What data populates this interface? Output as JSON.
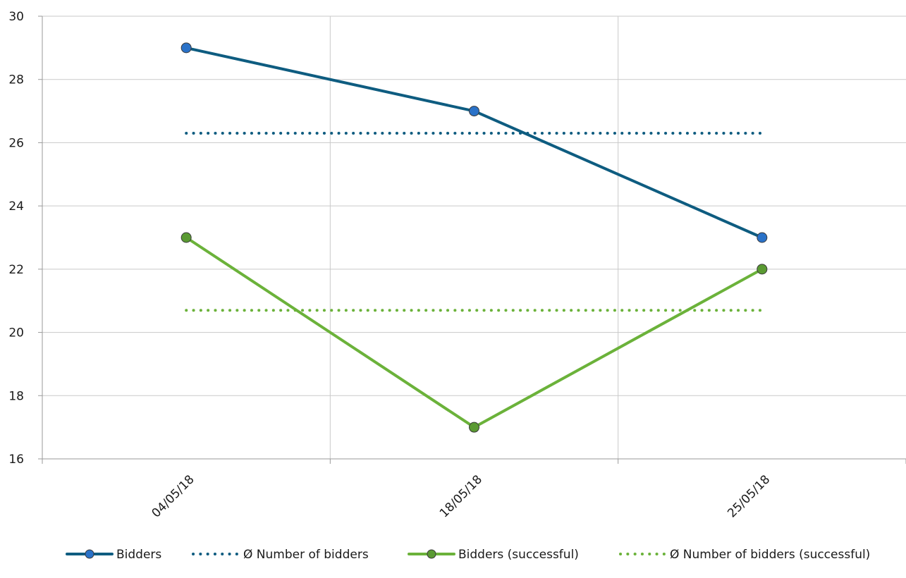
{
  "chart_data": {
    "type": "line",
    "title": "",
    "xlabel": "",
    "ylabel": "",
    "categories": [
      "04/05/18",
      "18/05/18",
      "25/05/18"
    ],
    "ylim": [
      16,
      30
    ],
    "yticks": [
      16,
      18,
      20,
      22,
      24,
      26,
      28,
      30
    ],
    "grid": true,
    "legend_position": "bottom",
    "series": [
      {
        "name": "Bidders",
        "values": [
          29,
          27,
          23
        ],
        "style": "solid",
        "markers": true,
        "color": "#0e5c80",
        "marker_color": "#2a72c8"
      },
      {
        "name": "Ø Number of bidders",
        "values": [
          26.3,
          26.3,
          26.3
        ],
        "style": "dotted",
        "markers": false,
        "color": "#0e5c80"
      },
      {
        "name": "Bidders (successful)",
        "values": [
          23,
          17,
          22
        ],
        "style": "solid",
        "markers": true,
        "color": "#6bb23a",
        "marker_color": "#5a9a32"
      },
      {
        "name": "Ø Number of bidders (successful)",
        "values": [
          20.7,
          20.7,
          20.7
        ],
        "style": "dotted",
        "markers": false,
        "color": "#6bb23a"
      }
    ]
  }
}
